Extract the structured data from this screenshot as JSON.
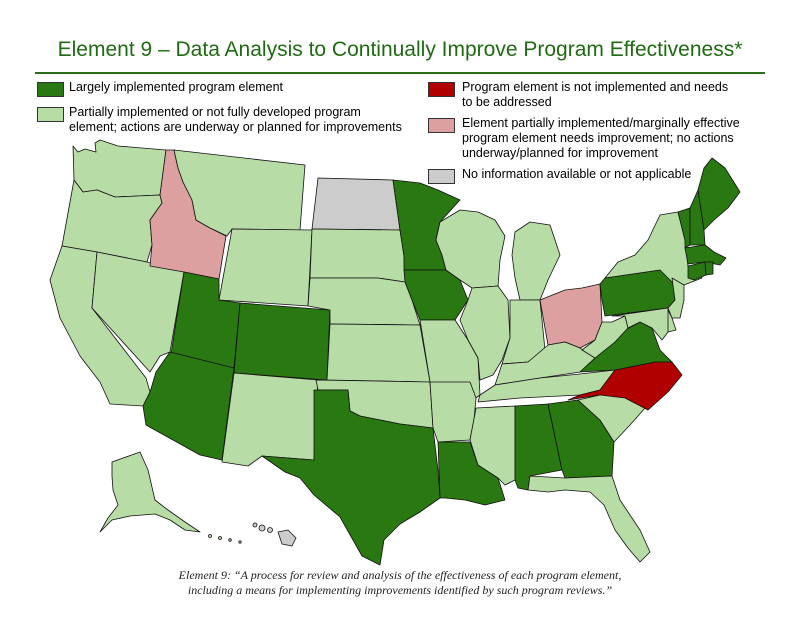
{
  "title": "Element 9 – Data Analysis to Continually Improve Program Effectiveness*",
  "legend": [
    {
      "id": "largely",
      "color": "#2a7811",
      "line1": "Largely implemented program element",
      "line2": ""
    },
    {
      "id": "partial",
      "color": "#b8dca6",
      "line1": "Partially implemented or not fully developed program",
      "line2": "element; actions are underway or planned for improvements"
    },
    {
      "id": "not",
      "color": "#b00000",
      "line1": "Program element is not implemented and needs",
      "line2": "to be addressed"
    },
    {
      "id": "marginal",
      "color": "#dda0a0",
      "line1": "Element partially implemented/marginally effective",
      "line2": "program element needs improvement; no actions",
      "line3": "underway/planned for improvement"
    },
    {
      "id": "na",
      "color": "#cccccc",
      "line1": "No information available or not applicable",
      "line2": ""
    }
  ],
  "colors": {
    "largely": "#2a7811",
    "partial": "#b8dca6",
    "not": "#b00000",
    "marginal": "#dda0a0",
    "na": "#cccccc",
    "border": "#111111",
    "rule": "#2a6e1a"
  },
  "states": {
    "WA": "partial",
    "OR": "partial",
    "CA": "partial",
    "NV": "partial",
    "ID": "marginal",
    "MT": "partial",
    "WY": "partial",
    "UT": "largely",
    "AZ": "largely",
    "CO": "largely",
    "NM": "partial",
    "ND": "na",
    "SD": "partial",
    "NE": "partial",
    "KS": "partial",
    "OK": "partial",
    "TX": "largely",
    "MN": "largely",
    "IA": "largely",
    "MO": "partial",
    "AR": "partial",
    "LA": "largely",
    "WI": "partial",
    "IL": "partial",
    "MI": "partial",
    "IN": "partial",
    "OH": "marginal",
    "KY": "partial",
    "TN": "partial",
    "MS": "partial",
    "AL": "largely",
    "GA": "largely",
    "FL": "partial",
    "SC": "partial",
    "NC": "not",
    "VA": "largely",
    "WV": "partial",
    "PA": "largely",
    "NY": "partial",
    "VT": "largely",
    "NH": "largely",
    "ME": "largely",
    "MA": "largely",
    "CT": "largely",
    "RI": "largely",
    "NJ": "partial",
    "DE": "partial",
    "MD": "partial",
    "AK": "partial",
    "HI": "na"
  },
  "caption": {
    "line1": "Element 9: “A process for review and analysis of the effectiveness of each program element,",
    "line2": "including a means for implementing improvements identified by such program reviews.”"
  }
}
